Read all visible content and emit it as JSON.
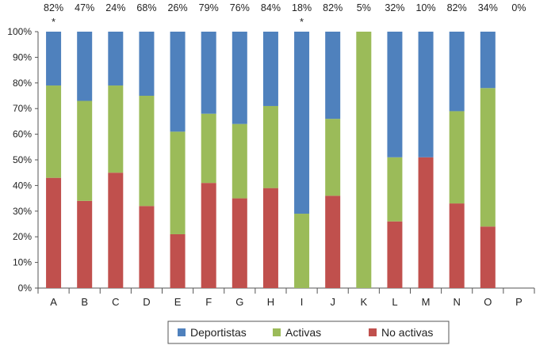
{
  "chart_data": {
    "type": "bar",
    "stacked": true,
    "categories": [
      "A",
      "B",
      "C",
      "D",
      "E",
      "F",
      "G",
      "H",
      "I",
      "J",
      "K",
      "L",
      "M",
      "N",
      "O",
      "P"
    ],
    "top_labels": [
      "82%",
      "47%",
      "24%",
      "68%",
      "26%",
      "79%",
      "76%",
      "84%",
      "18%",
      "82%",
      "5%",
      "32%",
      "10%",
      "82%",
      "34%",
      "0%"
    ],
    "asterisks": [
      "*",
      "",
      "",
      "",
      "",
      "",
      "",
      "",
      "*",
      "",
      "",
      "",
      "",
      "",
      "",
      ""
    ],
    "series": [
      {
        "name": "No activas",
        "color": "#c0504d",
        "values": [
          43,
          34,
          45,
          32,
          21,
          41,
          35,
          39,
          0,
          36,
          0,
          26,
          51,
          33,
          24,
          0
        ]
      },
      {
        "name": "Activas",
        "color": "#9bbb59",
        "values": [
          36,
          39,
          34,
          43,
          40,
          27,
          29,
          32,
          29,
          30,
          100,
          25,
          0,
          36,
          54,
          0
        ]
      },
      {
        "name": "Deportistas",
        "color": "#4f81bd",
        "values": [
          21,
          27,
          21,
          25,
          39,
          32,
          36,
          29,
          71,
          34,
          0,
          49,
          49,
          31,
          22,
          0
        ]
      }
    ],
    "y_ticks": [
      "0%",
      "10%",
      "20%",
      "30%",
      "40%",
      "50%",
      "60%",
      "70%",
      "80%",
      "90%",
      "100%"
    ],
    "ylim": [
      0,
      100
    ],
    "legend_order": [
      "Deportistas",
      "Activas",
      "No activas"
    ],
    "legend_position": "bottom",
    "title": "",
    "xlabel": "",
    "ylabel": ""
  }
}
